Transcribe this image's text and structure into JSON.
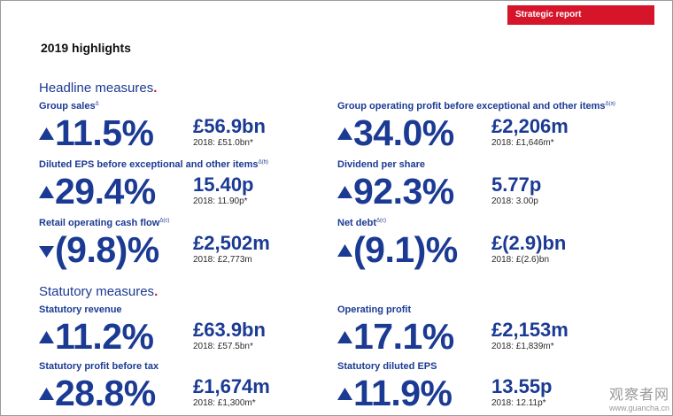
{
  "header": {
    "tag": "Strategic report",
    "title": "2019 highlights"
  },
  "colors": {
    "brand_blue": "#1b3a93",
    "accent_red": "#d6152b"
  },
  "headline": {
    "heading": "Headline measures",
    "metrics": [
      {
        "label": "Group sales",
        "note": "Δ",
        "direction": "up",
        "change": "11.5%",
        "value": "£56.9bn",
        "prior": "2018: £51.0bn*"
      },
      {
        "label": "Group operating profit before exceptional and other items",
        "note": "Δ(a)",
        "direction": "up",
        "change": "34.0%",
        "value": "£2,206m",
        "prior": "2018: £1,646m*"
      },
      {
        "label": "Diluted EPS before exceptional and other items",
        "note": "Δ(b)",
        "direction": "up",
        "change": "29.4%",
        "value": "15.40p",
        "prior": "2018: 11.90p*"
      },
      {
        "label": "Dividend per share",
        "note": "",
        "direction": "up",
        "change": "92.3%",
        "value": "5.77p",
        "prior": "2018: 3.00p"
      },
      {
        "label": "Retail operating cash flow",
        "note": "Δ(c)",
        "direction": "down",
        "change": "(9.8)%",
        "value": "£2,502m",
        "prior": "2018: £2,773m"
      },
      {
        "label": "Net debt",
        "note": "Δ(c)",
        "direction": "up",
        "change": "(9.1)%",
        "value": "£(2.9)bn",
        "prior": "2018: £(2.6)bn"
      }
    ]
  },
  "statutory": {
    "heading": "Statutory measures",
    "metrics": [
      {
        "label": "Statutory revenue",
        "note": "",
        "direction": "up",
        "change": "11.2%",
        "value": "£63.9bn",
        "prior": "2018: £57.5bn*"
      },
      {
        "label": "Operating profit",
        "note": "",
        "direction": "up",
        "change": "17.1%",
        "value": "£2,153m",
        "prior": "2018: £1,839m*"
      },
      {
        "label": "Statutory profit before tax",
        "note": "",
        "direction": "up",
        "change": "28.8%",
        "value": "£1,674m",
        "prior": "2018: £1,300m*"
      },
      {
        "label": "Statutory diluted EPS",
        "note": "",
        "direction": "up",
        "change": "11.9%",
        "value": "13.55p",
        "prior": "2018: 12.11p*"
      }
    ]
  },
  "watermark": {
    "line1": "观察者网",
    "line2": "www.guancha.cn"
  }
}
